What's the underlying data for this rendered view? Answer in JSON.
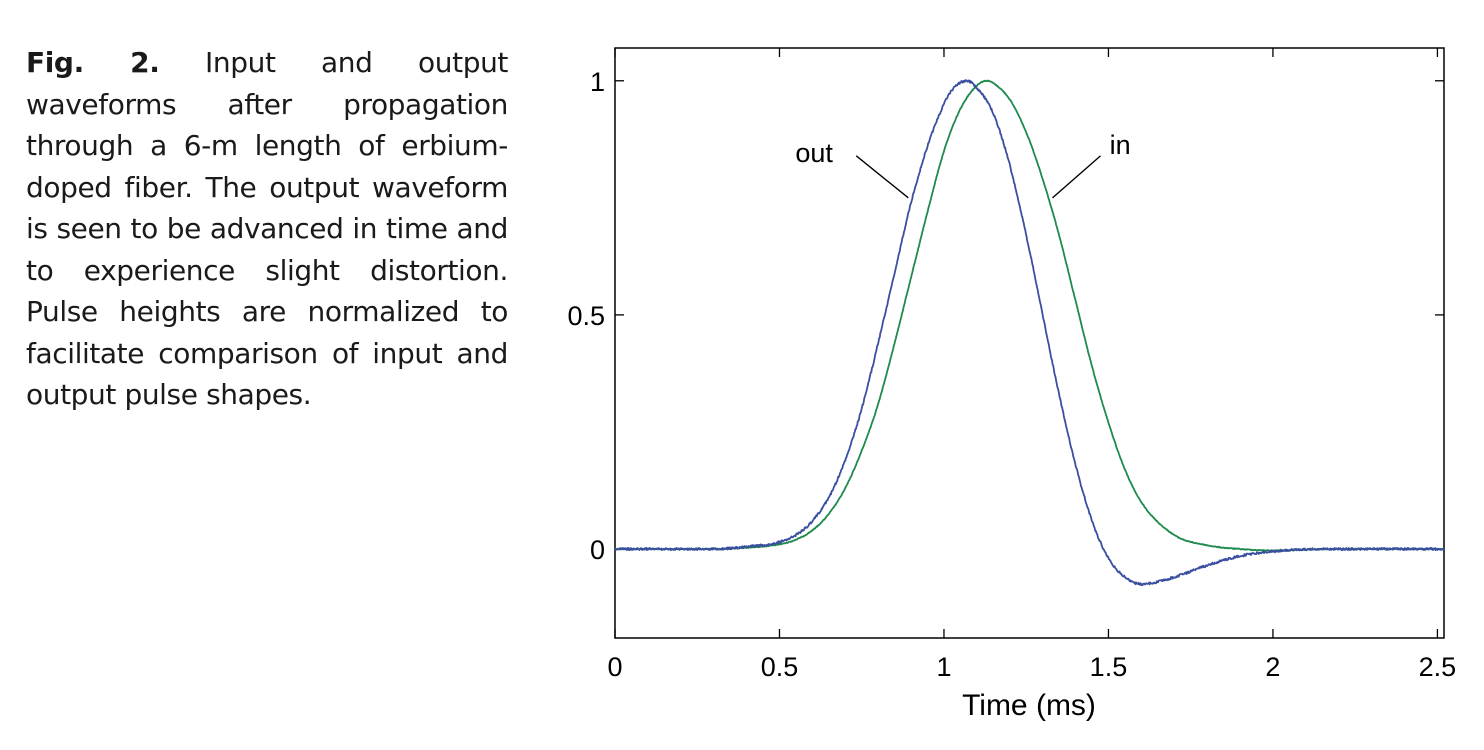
{
  "caption": {
    "label": "Fig. 2.",
    "text": "Input and output waveforms after propagation through a 6-m length of erbium-doped fiber. The output waveform is seen to be advanced in time and to experience slight distortion. Pulse heights are normalized to facilitate comparison of input and output pulse shapes."
  },
  "chart_data": {
    "type": "line",
    "title": "",
    "xlabel": "Time (ms)",
    "ylabel": "",
    "xlim": [
      0,
      2.52
    ],
    "ylim": [
      -0.19,
      1.07
    ],
    "xticks": [
      0,
      0.5,
      1,
      1.5,
      2,
      2.5
    ],
    "xtick_labels": [
      "0",
      "0.5",
      "1",
      "1.5",
      "2",
      "2.5"
    ],
    "yticks": [
      0,
      0.5,
      1
    ],
    "ytick_labels": [
      "0",
      "0.5",
      "1"
    ],
    "grid": false,
    "colors": {
      "in": "#1e8a4c",
      "out": "#3a4fa0"
    },
    "series": [
      {
        "name": "in",
        "x": [
          0,
          0.3,
          0.4,
          0.5,
          0.55,
          0.6,
          0.65,
          0.7,
          0.75,
          0.8,
          0.85,
          0.9,
          0.95,
          1.0,
          1.05,
          1.1,
          1.13,
          1.15,
          1.2,
          1.25,
          1.3,
          1.35,
          1.4,
          1.45,
          1.5,
          1.55,
          1.6,
          1.7,
          1.8,
          1.9,
          2.0,
          2.2,
          2.52
        ],
        "y": [
          0.0,
          0.0,
          0.003,
          0.01,
          0.02,
          0.04,
          0.075,
          0.13,
          0.21,
          0.31,
          0.44,
          0.58,
          0.72,
          0.85,
          0.94,
          0.99,
          1.0,
          0.995,
          0.96,
          0.89,
          0.79,
          0.67,
          0.53,
          0.39,
          0.27,
          0.17,
          0.1,
          0.03,
          0.008,
          0.0,
          -0.003,
          0.0,
          0.0
        ]
      },
      {
        "name": "out",
        "x": [
          0,
          0.3,
          0.4,
          0.5,
          0.55,
          0.6,
          0.65,
          0.7,
          0.75,
          0.8,
          0.85,
          0.9,
          0.95,
          1.0,
          1.03,
          1.07,
          1.1,
          1.15,
          1.2,
          1.25,
          1.3,
          1.35,
          1.4,
          1.45,
          1.5,
          1.55,
          1.6,
          1.65,
          1.7,
          1.8,
          1.9,
          2.0,
          2.2,
          2.52
        ],
        "y": [
          0.0,
          0.0,
          0.005,
          0.015,
          0.03,
          0.06,
          0.11,
          0.19,
          0.3,
          0.44,
          0.59,
          0.74,
          0.86,
          0.95,
          0.985,
          1.0,
          0.985,
          0.93,
          0.82,
          0.67,
          0.5,
          0.33,
          0.18,
          0.06,
          -0.02,
          -0.06,
          -0.075,
          -0.07,
          -0.06,
          -0.035,
          -0.015,
          -0.005,
          0.0,
          0.0
        ]
      }
    ],
    "annotations": [
      {
        "text": "out",
        "series": "out"
      },
      {
        "text": "in",
        "series": "in"
      }
    ]
  }
}
